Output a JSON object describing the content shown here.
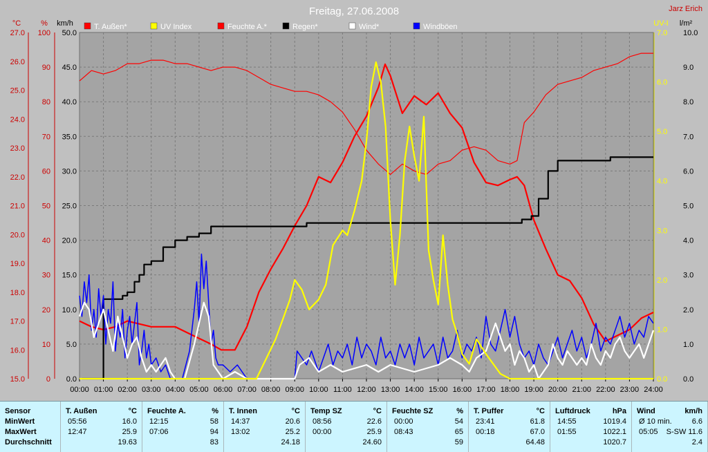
{
  "chart_data": {
    "type": "line",
    "title": "Freitag, 27.06.2008",
    "author": "Jarz Erich",
    "x_ticks": [
      "00:00",
      "01:00",
      "02:00",
      "03:00",
      "04:00",
      "05:00",
      "06:00",
      "07:00",
      "08:00",
      "09:00",
      "10:00",
      "11:00",
      "12:00",
      "13:00",
      "14:00",
      "15:00",
      "16:00",
      "17:00",
      "18:00",
      "19:00",
      "20:00",
      "21:00",
      "22:00",
      "23:00",
      "24:00"
    ],
    "axes": {
      "temp": {
        "unit": "°C",
        "min": 15.0,
        "max": 27.0,
        "ticks": [
          "15.0",
          "16.0",
          "17.0",
          "18.0",
          "19.0",
          "20.0",
          "21.0",
          "22.0",
          "23.0",
          "24.0",
          "25.0",
          "26.0",
          "27.0"
        ]
      },
      "humidity": {
        "unit": "%",
        "min": 0,
        "max": 100,
        "ticks": [
          "0",
          "10",
          "20",
          "30",
          "40",
          "50",
          "60",
          "70",
          "80",
          "90",
          "100"
        ]
      },
      "wind": {
        "unit": "km/h",
        "min": 0,
        "max": 50,
        "ticks": [
          "0.0",
          "5.0",
          "10.0",
          "15.0",
          "20.0",
          "25.0",
          "30.0",
          "35.0",
          "40.0",
          "45.0",
          "50.0"
        ]
      },
      "uv": {
        "unit": "UV-I",
        "min": 0,
        "max": 7,
        "ticks": [
          "0.0",
          "1.0",
          "2.0",
          "3.0",
          "4.0",
          "5.0",
          "6.0",
          "7.0"
        ]
      },
      "rain": {
        "unit": "l/m²",
        "min": 0,
        "max": 10,
        "ticks": [
          "0.0",
          "1.0",
          "2.0",
          "3.0",
          "4.0",
          "5.0",
          "6.0",
          "7.0",
          "8.0",
          "9.0",
          "10.0"
        ]
      }
    },
    "legend": [
      {
        "label": "T. Außen*",
        "color": "#ff0000"
      },
      {
        "label": "UV Index",
        "color": "#ffff00"
      },
      {
        "label": "Feuchte A.*",
        "color": "#ff0000"
      },
      {
        "label": "Regen*",
        "color": "#000000"
      },
      {
        "label": "Wind*",
        "color": "#ffffff"
      },
      {
        "label": "Windböen",
        "color": "#0000ff"
      }
    ],
    "series": [
      {
        "name": "T. Außen*",
        "axis": "temp",
        "color": "#ff0000",
        "x": [
          0,
          0.5,
          1,
          1.5,
          2,
          2.5,
          3,
          3.5,
          4,
          4.5,
          5,
          5.5,
          5.93,
          6.5,
          7,
          7.5,
          8,
          8.5,
          9,
          9.5,
          10,
          10.5,
          11,
          11.5,
          12,
          12.5,
          12.78,
          13,
          13.5,
          14,
          14.5,
          15,
          15.5,
          16,
          16.5,
          17,
          17.5,
          18,
          18.3,
          18.6,
          19,
          19.5,
          20,
          20.5,
          21,
          21.5,
          22,
          22.5,
          23,
          23.5,
          24
        ],
        "y": [
          17.0,
          16.8,
          16.7,
          16.8,
          17.0,
          16.9,
          16.8,
          16.8,
          16.8,
          16.6,
          16.4,
          16.2,
          16.0,
          16.0,
          16.8,
          18.0,
          18.8,
          19.5,
          20.3,
          21.0,
          22.0,
          21.8,
          22.5,
          23.4,
          24.1,
          25.1,
          25.9,
          25.5,
          24.2,
          24.8,
          24.5,
          24.9,
          24.2,
          23.7,
          22.5,
          21.8,
          21.7,
          21.9,
          22.0,
          21.7,
          20.5,
          19.5,
          18.6,
          18.4,
          17.8,
          16.9,
          16.3,
          16.5,
          16.7,
          17.1,
          17.3
        ]
      },
      {
        "name": "Feuchte A.*",
        "axis": "humidity",
        "color": "#ff0000",
        "x": [
          0,
          0.5,
          1,
          1.5,
          2,
          2.5,
          3,
          3.5,
          4,
          4.5,
          5,
          5.5,
          6,
          6.5,
          7,
          7.5,
          8,
          8.5,
          9,
          9.5,
          10,
          10.5,
          11,
          11.5,
          12,
          12.5,
          13,
          13.5,
          14,
          14.5,
          15,
          15.5,
          16,
          16.5,
          17,
          17.5,
          18,
          18.3,
          18.6,
          19,
          19.5,
          20,
          20.5,
          21,
          21.5,
          22,
          22.5,
          23,
          23.5,
          24
        ],
        "y": [
          86,
          89,
          88,
          89,
          91,
          91,
          92,
          92,
          91,
          91,
          90,
          89,
          90,
          90,
          89,
          87,
          85,
          84,
          83,
          83,
          82,
          80,
          77,
          72,
          66,
          62,
          59,
          62,
          60,
          59,
          62,
          63,
          66,
          67,
          66,
          63,
          62,
          63,
          74,
          77,
          82,
          85,
          86,
          87,
          89,
          90,
          91,
          93,
          94,
          94
        ]
      },
      {
        "name": "Regen*",
        "axis": "rain",
        "color": "#000000",
        "x": [
          0.1,
          1.0,
          1.5,
          1.8,
          2.0,
          2.3,
          2.5,
          2.7,
          3.0,
          3.5,
          4.0,
          4.5,
          5.0,
          5.5,
          6.0,
          6.5,
          7.0,
          7.5,
          8.0,
          8.5,
          9.0,
          9.5,
          10.0,
          10.5,
          11.0,
          12.0,
          13.0,
          14.0,
          15.0,
          16.0,
          17.0,
          18.0,
          18.5,
          18.9,
          19.2,
          19.6,
          20.0,
          21.0,
          22.0,
          22.2,
          23.0,
          24.0
        ],
        "y": [
          0.0,
          2.3,
          2.3,
          2.4,
          2.5,
          2.8,
          3.0,
          3.3,
          3.4,
          3.8,
          4.0,
          4.1,
          4.2,
          4.4,
          4.4,
          4.4,
          4.4,
          4.4,
          4.4,
          4.4,
          4.4,
          4.5,
          4.5,
          4.5,
          4.5,
          4.5,
          4.5,
          4.5,
          4.5,
          4.5,
          4.5,
          4.5,
          4.6,
          4.7,
          5.2,
          6.0,
          6.3,
          6.3,
          6.3,
          6.4,
          6.4,
          6.4
        ]
      },
      {
        "name": "UV Index",
        "axis": "uv",
        "color": "#ffff00",
        "x": [
          0,
          7.4,
          7.6,
          7.8,
          8.0,
          8.2,
          8.5,
          8.8,
          9.0,
          9.3,
          9.6,
          10.0,
          10.3,
          10.6,
          11.0,
          11.2,
          11.5,
          11.8,
          12.0,
          12.2,
          12.4,
          12.6,
          12.8,
          13.0,
          13.2,
          13.4,
          13.6,
          13.8,
          14.0,
          14.2,
          14.4,
          14.6,
          14.8,
          15.0,
          15.2,
          15.4,
          15.6,
          15.8,
          16.0,
          16.3,
          16.6,
          17.0,
          17.3,
          17.6,
          18.0,
          24.0
        ],
        "y": [
          0,
          0,
          0.2,
          0.4,
          0.6,
          0.8,
          1.2,
          1.6,
          2.0,
          1.8,
          1.4,
          1.6,
          1.9,
          2.7,
          3.0,
          2.9,
          3.4,
          4.0,
          4.8,
          5.9,
          6.4,
          6.0,
          5.1,
          3.2,
          1.9,
          2.9,
          4.4,
          5.1,
          4.5,
          4.0,
          5.3,
          2.6,
          2.0,
          1.5,
          2.9,
          1.9,
          1.2,
          0.9,
          0.5,
          0.3,
          0.8,
          0.5,
          0.3,
          0.1,
          0,
          0
        ]
      },
      {
        "name": "Wind*",
        "axis": "wind",
        "color": "#ffffff",
        "x": [
          0,
          0.2,
          0.4,
          0.6,
          0.8,
          1.0,
          1.2,
          1.4,
          1.6,
          1.8,
          2.0,
          2.2,
          2.4,
          2.6,
          2.8,
          3.0,
          3.2,
          3.4,
          3.6,
          3.8,
          4.0,
          4.4,
          4.8,
          5.0,
          5.2,
          5.4,
          5.6,
          6.0,
          6.5,
          7.0,
          8.0,
          9.0,
          9.2,
          9.6,
          10.0,
          10.5,
          11.0,
          12.0,
          12.5,
          13.0,
          14.0,
          15.0,
          15.5,
          16.0,
          16.3,
          16.6,
          17.0,
          17.2,
          17.4,
          17.6,
          17.8,
          18.0,
          18.2,
          18.4,
          18.6,
          18.8,
          19.0,
          19.2,
          19.4,
          19.6,
          19.8,
          20.0,
          20.2,
          20.4,
          20.6,
          20.8,
          21.0,
          21.2,
          21.4,
          21.6,
          21.8,
          22.0,
          22.2,
          22.4,
          22.6,
          22.8,
          23.0,
          23.2,
          23.4,
          23.6,
          23.8,
          24.0
        ],
        "y": [
          9,
          11,
          10,
          6,
          8,
          10,
          7,
          4,
          9,
          6,
          3,
          5,
          6,
          3,
          1,
          2,
          1,
          2,
          3,
          1,
          0,
          0,
          5,
          8,
          11,
          9,
          2,
          0,
          1,
          0,
          0,
          0,
          2,
          3,
          1,
          2,
          1,
          2,
          1,
          2,
          1,
          2,
          3,
          2,
          1,
          3,
          4,
          6,
          8,
          6,
          4,
          5,
          2,
          4,
          3,
          1,
          2,
          0,
          1,
          2,
          5,
          3,
          2,
          4,
          3,
          2,
          3,
          2,
          5,
          3,
          2,
          4,
          3,
          5,
          6,
          4,
          3,
          4,
          5,
          3,
          5,
          7
        ]
      },
      {
        "name": "Windböen",
        "axis": "wind",
        "color": "#0000ff",
        "x": [
          0,
          0.1,
          0.2,
          0.3,
          0.4,
          0.5,
          0.6,
          0.7,
          0.8,
          0.9,
          1.0,
          1.1,
          1.2,
          1.3,
          1.4,
          1.5,
          1.6,
          1.7,
          1.8,
          1.9,
          2.0,
          2.1,
          2.2,
          2.3,
          2.4,
          2.5,
          2.6,
          2.7,
          2.8,
          2.9,
          3.0,
          3.2,
          3.4,
          3.6,
          3.8,
          4.0,
          4.3,
          4.6,
          4.8,
          4.9,
          5.0,
          5.1,
          5.2,
          5.3,
          5.4,
          5.5,
          5.6,
          5.7,
          5.8,
          6.0,
          6.3,
          6.6,
          7.0,
          8.0,
          9.0,
          9.1,
          9.3,
          9.5,
          9.7,
          10.0,
          10.2,
          10.4,
          10.6,
          10.8,
          11.0,
          11.2,
          11.4,
          11.6,
          11.8,
          12.0,
          12.2,
          12.4,
          12.6,
          12.8,
          13.0,
          13.2,
          13.4,
          13.6,
          13.8,
          14.0,
          14.2,
          14.4,
          14.6,
          14.8,
          15.0,
          15.2,
          15.4,
          15.6,
          15.8,
          16.0,
          16.2,
          16.4,
          16.6,
          16.8,
          17.0,
          17.2,
          17.4,
          17.6,
          17.8,
          18.0,
          18.2,
          18.4,
          18.6,
          18.8,
          19.0,
          19.2,
          19.4,
          19.6,
          19.8,
          20.0,
          20.2,
          20.4,
          20.6,
          20.8,
          21.0,
          21.2,
          21.4,
          21.6,
          21.8,
          22.0,
          22.2,
          22.4,
          22.6,
          22.8,
          23.0,
          23.2,
          23.4,
          23.6,
          23.8,
          24.0
        ],
        "y": [
          12,
          9,
          14,
          11,
          15,
          7,
          10,
          6,
          13,
          9,
          12,
          5,
          10,
          8,
          14,
          4,
          8,
          6,
          10,
          3,
          7,
          9,
          5,
          8,
          11,
          2,
          4,
          7,
          3,
          5,
          2,
          3,
          1,
          2,
          0,
          0,
          0,
          4,
          10,
          14,
          8,
          18,
          13,
          17,
          11,
          5,
          7,
          3,
          2,
          2,
          1,
          2,
          0,
          0,
          0,
          4,
          3,
          2,
          4,
          1,
          3,
          5,
          2,
          4,
          3,
          5,
          2,
          6,
          3,
          5,
          4,
          2,
          6,
          3,
          4,
          2,
          5,
          3,
          5,
          2,
          6,
          3,
          4,
          5,
          2,
          6,
          3,
          4,
          7,
          3,
          5,
          4,
          6,
          3,
          9,
          5,
          4,
          7,
          10,
          6,
          9,
          5,
          3,
          4,
          2,
          5,
          3,
          2,
          4,
          6,
          3,
          5,
          7,
          4,
          6,
          3,
          5,
          8,
          4,
          6,
          5,
          7,
          9,
          6,
          8,
          5,
          7,
          6,
          9,
          8
        ]
      }
    ]
  },
  "stats": {
    "columns": [
      {
        "header": "Sensor",
        "unit": "",
        "rows": [
          {
            "time": "MinWert",
            "value": ""
          },
          {
            "time": "MaxWert",
            "value": ""
          },
          {
            "time": "Durchschnitt",
            "value": ""
          }
        ]
      },
      {
        "header": "T. Außen",
        "unit": "°C",
        "rows": [
          {
            "time": "05:56",
            "value": "16.0"
          },
          {
            "time": "12:47",
            "value": "25.9"
          },
          {
            "time": "",
            "value": "19.63"
          }
        ]
      },
      {
        "header": "Feuchte A.",
        "unit": "%",
        "rows": [
          {
            "time": "12:15",
            "value": "58"
          },
          {
            "time": "07:06",
            "value": "94"
          },
          {
            "time": "",
            "value": "83"
          }
        ]
      },
      {
        "header": "T. Innen",
        "unit": "°C",
        "rows": [
          {
            "time": "14:37",
            "value": "20.6"
          },
          {
            "time": "13:02",
            "value": "25.2"
          },
          {
            "time": "",
            "value": "24.18"
          }
        ]
      },
      {
        "header": "Temp SZ",
        "unit": "°C",
        "rows": [
          {
            "time": "08:56",
            "value": "22.6"
          },
          {
            "time": "00:00",
            "value": "25.9"
          },
          {
            "time": "",
            "value": "24.60"
          }
        ]
      },
      {
        "header": "Feuchte SZ",
        "unit": "%",
        "rows": [
          {
            "time": "00:00",
            "value": "54"
          },
          {
            "time": "08:43",
            "value": "65"
          },
          {
            "time": "",
            "value": "59"
          }
        ]
      },
      {
        "header": "T. Puffer",
        "unit": "°C",
        "rows": [
          {
            "time": "23:41",
            "value": "61.8"
          },
          {
            "time": "00:18",
            "value": "67.0"
          },
          {
            "time": "",
            "value": "64.48"
          }
        ]
      },
      {
        "header": "Luftdruck",
        "unit": "hPa",
        "rows": [
          {
            "time": "14:55",
            "value": "1019.4"
          },
          {
            "time": "01:55",
            "value": "1022.1"
          },
          {
            "time": "",
            "value": "1020.7"
          }
        ]
      },
      {
        "header": "Wind",
        "unit": "km/h",
        "rows": [
          {
            "time": "Ø 10 min.",
            "value": "6.6"
          },
          {
            "time": "05:05",
            "value": "S-SW 11.6"
          },
          {
            "time": "",
            "value": "2.4"
          }
        ]
      }
    ]
  }
}
